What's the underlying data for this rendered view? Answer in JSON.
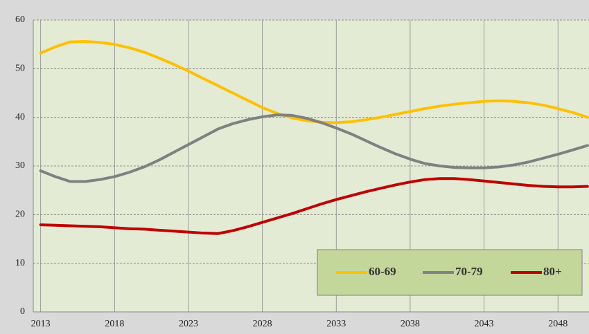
{
  "chart_data": {
    "type": "line",
    "x": [
      2013,
      2014,
      2015,
      2016,
      2017,
      2018,
      2019,
      2020,
      2021,
      2022,
      2023,
      2024,
      2025,
      2026,
      2027,
      2028,
      2029,
      2030,
      2031,
      2032,
      2033,
      2034,
      2035,
      2036,
      2037,
      2038,
      2039,
      2040,
      2041,
      2042,
      2043,
      2044,
      2045,
      2046,
      2047,
      2048,
      2049,
      2050
    ],
    "series": [
      {
        "name": "60-69",
        "color": "#ffc000",
        "values": [
          53.2,
          54.5,
          55.5,
          55.6,
          55.4,
          55.0,
          54.3,
          53.4,
          52.2,
          50.9,
          49.5,
          48.0,
          46.5,
          45.0,
          43.5,
          42.0,
          40.8,
          39.9,
          39.3,
          39.0,
          38.9,
          39.1,
          39.5,
          40.0,
          40.6,
          41.2,
          41.8,
          42.3,
          42.7,
          43.0,
          43.3,
          43.4,
          43.3,
          43.0,
          42.5,
          41.8,
          41.0,
          40.0
        ]
      },
      {
        "name": "70-79",
        "color": "#808080",
        "values": [
          29.0,
          27.8,
          26.8,
          26.8,
          27.2,
          27.8,
          28.7,
          29.8,
          31.2,
          32.8,
          34.4,
          36.0,
          37.6,
          38.7,
          39.5,
          40.1,
          40.5,
          40.4,
          39.8,
          38.9,
          37.8,
          36.6,
          35.2,
          33.8,
          32.5,
          31.4,
          30.5,
          30.0,
          29.7,
          29.6,
          29.6,
          29.8,
          30.2,
          30.8,
          31.6,
          32.4,
          33.3,
          34.2
        ]
      },
      {
        "name": "80+",
        "color": "#c00000",
        "values": [
          17.9,
          17.8,
          17.7,
          17.6,
          17.5,
          17.3,
          17.1,
          17.0,
          16.8,
          16.6,
          16.4,
          16.2,
          16.1,
          16.7,
          17.5,
          18.4,
          19.3,
          20.2,
          21.2,
          22.2,
          23.1,
          23.9,
          24.7,
          25.4,
          26.1,
          26.7,
          27.2,
          27.4,
          27.4,
          27.2,
          26.9,
          26.6,
          26.3,
          26.0,
          25.8,
          25.7,
          25.7,
          25.8
        ]
      }
    ],
    "xlim": [
      2012.5,
      2050.1
    ],
    "xticks": [
      2013,
      2018,
      2023,
      2028,
      2033,
      2038,
      2043,
      2048
    ],
    "ylim": [
      0,
      60
    ],
    "yticks": [
      0,
      10,
      20,
      30,
      40,
      50,
      60
    ],
    "grid": true,
    "legend": "bottom-right"
  }
}
